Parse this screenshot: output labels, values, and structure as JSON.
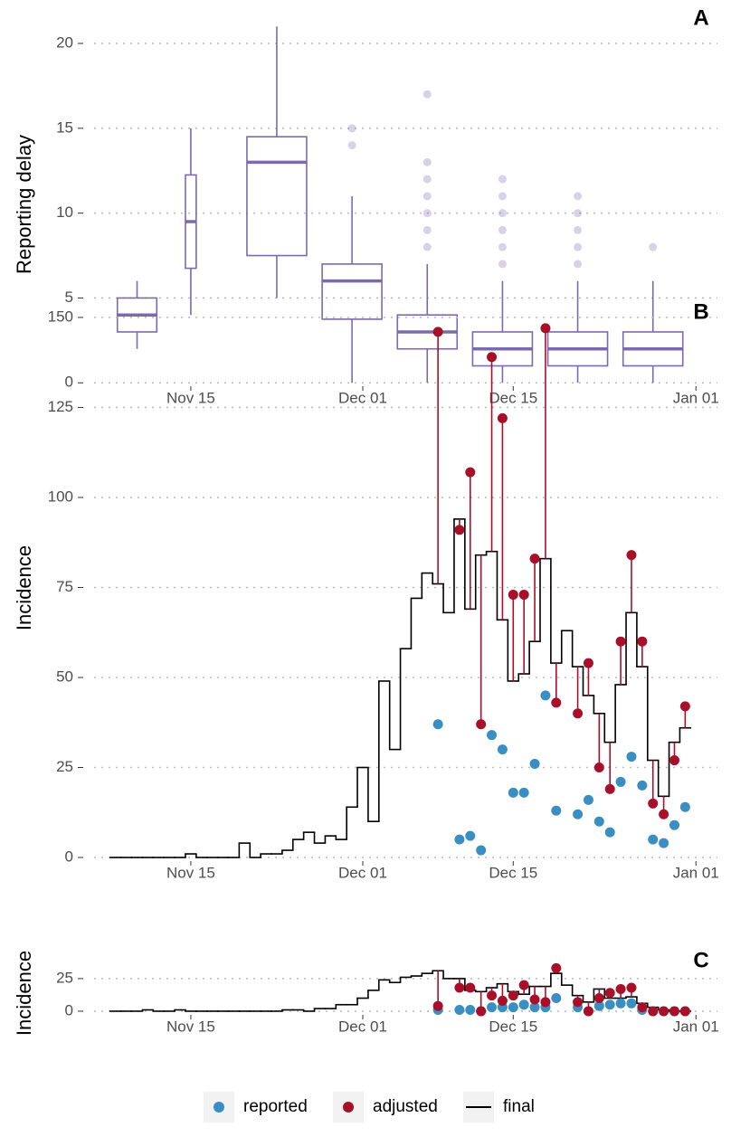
{
  "chart_data": [
    {
      "type": "box",
      "panel": "A",
      "y_label": "Reporting delay",
      "color": "#7b6aad",
      "x": [
        "Nov 10",
        "Nov 15",
        "Nov 23",
        "Nov 30",
        "Dec 07",
        "Dec 14",
        "Dec 21",
        "Dec 28"
      ],
      "low": [
        2,
        4,
        5,
        0,
        0,
        0,
        0,
        0
      ],
      "q1": [
        3,
        6.75,
        7.5,
        3.75,
        2,
        1,
        1,
        1
      ],
      "median": [
        4,
        9.5,
        13,
        6,
        3,
        2,
        2,
        2
      ],
      "q3": [
        5,
        12.25,
        14.5,
        7,
        4,
        3,
        3,
        3
      ],
      "high": [
        6,
        15,
        21,
        11,
        7,
        6,
        6,
        6
      ],
      "outliers": [
        [],
        [],
        [],
        [
          14,
          15
        ],
        [
          8,
          9,
          10,
          11,
          12,
          13,
          17
        ],
        [
          7,
          8,
          9,
          10,
          11,
          12
        ],
        [
          7,
          8,
          9,
          10,
          11
        ],
        [
          8
        ]
      ],
      "xlim": [
        "Nov 06",
        "Jan 03"
      ],
      "xticks": [
        "Nov 15",
        "Dec 01",
        "Dec 15",
        "Jan 01"
      ],
      "ylim": [
        -0.2,
        21.6
      ],
      "yticks": [
        0,
        5,
        10,
        15,
        20
      ],
      "grid": true
    },
    {
      "type": "line",
      "panel": "B",
      "y_label": "Incidence",
      "x": [
        "Nov 08",
        "Nov 09",
        "Nov 10",
        "Nov 11",
        "Nov 12",
        "Nov 13",
        "Nov 14",
        "Nov 15",
        "Nov 16",
        "Nov 17",
        "Nov 18",
        "Nov 19",
        "Nov 20",
        "Nov 21",
        "Nov 22",
        "Nov 23",
        "Nov 24",
        "Nov 25",
        "Nov 26",
        "Nov 27",
        "Nov 28",
        "Nov 29",
        "Nov 30",
        "Dec 01",
        "Dec 02",
        "Dec 03",
        "Dec 04",
        "Dec 05",
        "Dec 06",
        "Dec 07",
        "Dec 08",
        "Dec 09",
        "Dec 10",
        "Dec 11",
        "Dec 12",
        "Dec 13",
        "Dec 14",
        "Dec 15",
        "Dec 16",
        "Dec 17",
        "Dec 18",
        "Dec 19",
        "Dec 20",
        "Dec 21",
        "Dec 22",
        "Dec 23",
        "Dec 24",
        "Dec 25",
        "Dec 26",
        "Dec 27",
        "Dec 28",
        "Dec 29",
        "Dec 30",
        "Dec 31"
      ],
      "series": [
        {
          "name": "reported",
          "mark": "point",
          "color": "#3a8ec2",
          "values": [
            null,
            null,
            null,
            null,
            null,
            null,
            null,
            null,
            null,
            null,
            null,
            null,
            null,
            null,
            null,
            null,
            null,
            null,
            null,
            null,
            null,
            null,
            null,
            null,
            null,
            null,
            null,
            null,
            null,
            null,
            37,
            null,
            5,
            6,
            2,
            34,
            30,
            18,
            18,
            26,
            45,
            13,
            null,
            12,
            16,
            10,
            7,
            21,
            28,
            20,
            5,
            4,
            9,
            14
          ]
        },
        {
          "name": "adjusted",
          "mark": "point",
          "color": "#a8102a",
          "values": [
            null,
            null,
            null,
            null,
            null,
            null,
            null,
            null,
            null,
            null,
            null,
            null,
            null,
            null,
            null,
            null,
            null,
            null,
            null,
            null,
            null,
            null,
            null,
            null,
            null,
            null,
            null,
            null,
            null,
            null,
            146,
            null,
            91,
            107,
            37,
            139,
            122,
            73,
            73,
            83,
            147,
            43,
            null,
            40,
            54,
            25,
            19,
            60,
            84,
            60,
            15,
            12,
            27,
            42
          ]
        },
        {
          "name": "final",
          "mark": "step",
          "color": "#000000",
          "values": [
            0,
            0,
            0,
            0,
            0,
            0,
            0,
            1,
            0,
            0,
            0,
            0,
            4,
            0,
            1,
            1,
            2,
            5,
            7,
            4,
            6,
            5,
            14,
            25,
            10,
            49,
            30,
            58,
            72,
            79,
            76,
            68,
            94,
            69,
            84,
            85,
            66,
            49,
            51,
            60,
            83,
            54,
            63,
            53,
            45,
            40,
            32,
            48,
            68,
            53,
            27,
            17,
            32,
            36
          ]
        }
      ],
      "xlim": [
        "Nov 06",
        "Jan 03"
      ],
      "xticks": [
        "Nov 15",
        "Dec 01",
        "Dec 15",
        "Jan 01"
      ],
      "ylim": [
        -1,
        152
      ],
      "yticks": [
        0,
        25,
        50,
        75,
        100,
        125,
        150
      ],
      "grid": true
    },
    {
      "type": "line",
      "panel": "C",
      "y_label": "Incidence",
      "x": [
        "Nov 08",
        "Nov 09",
        "Nov 10",
        "Nov 11",
        "Nov 12",
        "Nov 13",
        "Nov 14",
        "Nov 15",
        "Nov 16",
        "Nov 17",
        "Nov 18",
        "Nov 19",
        "Nov 20",
        "Nov 21",
        "Nov 22",
        "Nov 23",
        "Nov 24",
        "Nov 25",
        "Nov 26",
        "Nov 27",
        "Nov 28",
        "Nov 29",
        "Nov 30",
        "Dec 01",
        "Dec 02",
        "Dec 03",
        "Dec 04",
        "Dec 05",
        "Dec 06",
        "Dec 07",
        "Dec 08",
        "Dec 09",
        "Dec 10",
        "Dec 11",
        "Dec 12",
        "Dec 13",
        "Dec 14",
        "Dec 15",
        "Dec 16",
        "Dec 17",
        "Dec 18",
        "Dec 19",
        "Dec 20",
        "Dec 21",
        "Dec 22",
        "Dec 23",
        "Dec 24",
        "Dec 25",
        "Dec 26",
        "Dec 27",
        "Dec 28",
        "Dec 29",
        "Dec 30",
        "Dec 31"
      ],
      "series": [
        {
          "mark": "point",
          "color": "#3a8ec2",
          "values": [
            null,
            null,
            null,
            null,
            null,
            null,
            null,
            null,
            null,
            null,
            null,
            null,
            null,
            null,
            null,
            null,
            null,
            null,
            null,
            null,
            null,
            null,
            null,
            null,
            null,
            null,
            null,
            null,
            null,
            null,
            1,
            null,
            1,
            1,
            0,
            3,
            3,
            3,
            5,
            3,
            3,
            10,
            null,
            3,
            0,
            4,
            5,
            6,
            6,
            1,
            0,
            0,
            0,
            0
          ]
        },
        {
          "mark": "point",
          "color": "#a8102a",
          "values": [
            null,
            null,
            null,
            null,
            null,
            null,
            null,
            null,
            null,
            null,
            null,
            null,
            null,
            null,
            null,
            null,
            null,
            null,
            null,
            null,
            null,
            null,
            null,
            null,
            null,
            null,
            null,
            null,
            null,
            null,
            4,
            null,
            18,
            18,
            0,
            12,
            8,
            12,
            20,
            9,
            7,
            33,
            null,
            7,
            0,
            10,
            14,
            17,
            18,
            3,
            0,
            0,
            0,
            0
          ]
        },
        {
          "mark": "step",
          "color": "#000000",
          "values": [
            0,
            0,
            0,
            1,
            0,
            0,
            1,
            0,
            0,
            0,
            0,
            0,
            0,
            0,
            0,
            0,
            1,
            1,
            0,
            2,
            2,
            5,
            5,
            10,
            16,
            24,
            22,
            26,
            27,
            29,
            31,
            25,
            25,
            16,
            15,
            18,
            21,
            15,
            13,
            19,
            19,
            29,
            20,
            12,
            7,
            17,
            10,
            10,
            11,
            6,
            3,
            1,
            0,
            0
          ]
        }
      ],
      "xlim": [
        "Nov 06",
        "Jan 03"
      ],
      "xticks": [
        "Nov 15",
        "Dec 01",
        "Dec 15",
        "Jan 01"
      ],
      "ylim": [
        -2.8,
        40.2
      ],
      "yticks": [
        0,
        25
      ],
      "grid": true
    }
  ]
}
